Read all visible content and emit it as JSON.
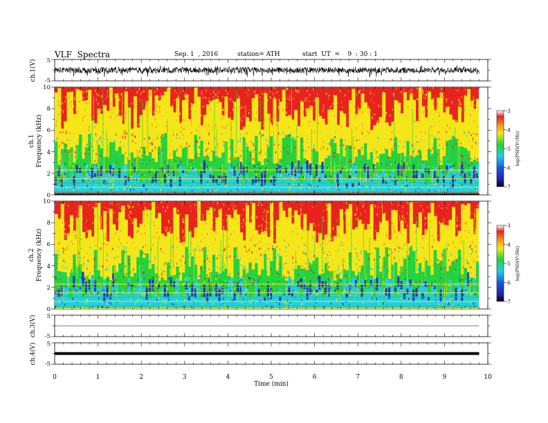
{
  "header": {
    "title": "VLF  Spectra",
    "date": "Sep. 1  , 2016",
    "station": "station= ATH",
    "start": "start  UT  =    9  : 30 : 1"
  },
  "chart_data": [
    {
      "type": "line",
      "panel": "waveform",
      "ylabel": "ch.1(V)",
      "ylim": [
        -5,
        5
      ],
      "yticks": [
        "5",
        "-5"
      ],
      "xlim": [
        0,
        10
      ],
      "trace_extent_min": 9.8,
      "note_level": "noisy signal roughly between -2.5 and 1.8 V"
    },
    {
      "type": "heatmap",
      "panel": "spectrogram",
      "ylabel_channel": "ch.1",
      "ylabel": "Frequency  (kHz)",
      "ylim": [
        0,
        10
      ],
      "yticks": [
        "0",
        "2",
        "4",
        "6",
        "8",
        "10"
      ],
      "xlim": [
        0,
        10
      ],
      "colorbar": {
        "label": "log(PSD(V²/Hz)",
        "range": [
          -7,
          -3
        ],
        "ticks": [
          "-3",
          "-4",
          "-5",
          "-6",
          "-7"
        ]
      }
    },
    {
      "type": "heatmap",
      "panel": "spectrogram",
      "ylabel_channel": "ch.2",
      "ylabel": "Frequency  (kHz)",
      "ylim": [
        0,
        10
      ],
      "yticks": [
        "0",
        "2",
        "4",
        "6",
        "8",
        "10"
      ],
      "xlim": [
        0,
        10
      ],
      "colorbar": {
        "label": "log(PSD(V²/Hz)",
        "range": [
          -7,
          -3
        ],
        "ticks": [
          "-3",
          "-4",
          "-5",
          "-6",
          "-7"
        ]
      }
    },
    {
      "type": "line",
      "panel": "waveform",
      "ylabel": "ch.3(V)",
      "ylim": [
        -5,
        5
      ],
      "yticks": [
        "5",
        "-5"
      ],
      "xlim": [
        0,
        10
      ],
      "note_level": "flat near 0 V"
    },
    {
      "type": "line",
      "panel": "waveform",
      "ylabel": "ch.4(V)",
      "ylim": [
        -5,
        5
      ],
      "yticks": [
        "5",
        "-5"
      ],
      "xlim": [
        0,
        10
      ],
      "note_level": "thick flat trace near 0 V"
    }
  ],
  "xaxis": {
    "label": "Time  (min)",
    "ticks": [
      "0",
      "1",
      "2",
      "3",
      "4",
      "5",
      "6",
      "7",
      "8",
      "9",
      "10"
    ]
  },
  "colors": {
    "spec_high": "#e8231e",
    "spec_mid": "#f5e61a",
    "spec_green": "#22d23c",
    "spec_cyan": "#21cfe6",
    "spec_low": "#1e32c8",
    "spec_min": "#000000"
  }
}
